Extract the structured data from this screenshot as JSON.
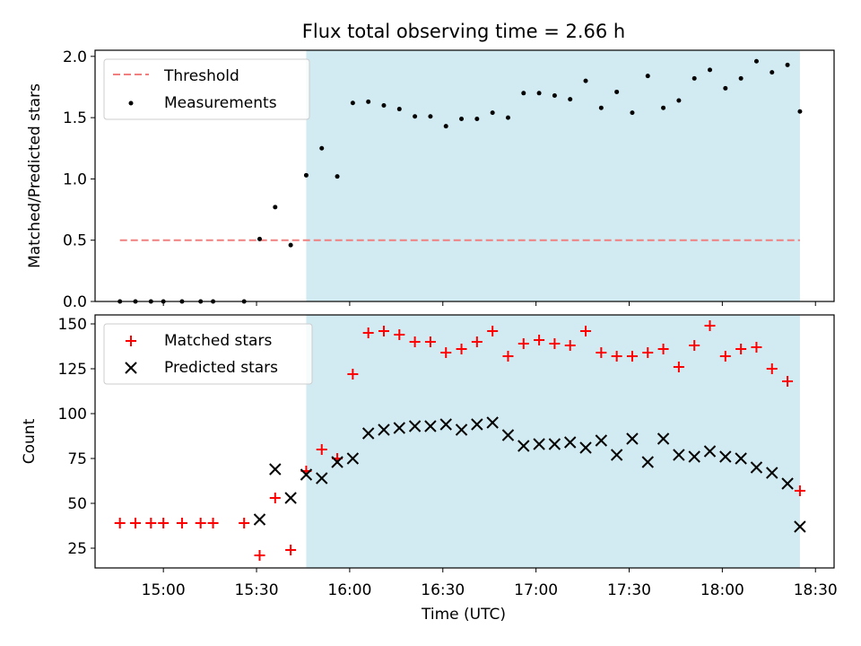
{
  "title": "Flux total observing time = 2.66 h",
  "top_panel": {
    "ylabel": "Matched/Predicted stars",
    "legend": {
      "threshold": "Threshold",
      "measurements": "Measurements"
    },
    "yticks": [
      "0.0",
      "0.5",
      "1.0",
      "1.5",
      "2.0"
    ]
  },
  "bottom_panel": {
    "ylabel": "Count",
    "xlabel": "Time (UTC)",
    "legend": {
      "matched": "Matched stars",
      "predicted": "Predicted stars"
    },
    "yticks": [
      "25",
      "50",
      "75",
      "100",
      "125",
      "150"
    ]
  },
  "xticks": [
    "15:00",
    "15:30",
    "16:00",
    "16:30",
    "17:00",
    "17:30",
    "18:00",
    "18:30"
  ],
  "colors": {
    "shade": "#add8e6",
    "threshold": "#f08080",
    "measurements": "#000000",
    "matched": "#ff0000",
    "predicted": "#000000"
  },
  "chart_data": [
    {
      "type": "scatter",
      "panel": "top",
      "title": "Flux total observing time = 2.66 h",
      "xlabel": "",
      "ylabel": "Matched/Predicted stars",
      "xlim": [
        "14:38",
        "18:36"
      ],
      "ylim": [
        0,
        2.05
      ],
      "grid": false,
      "legend_position": "top-left",
      "shaded_span": [
        "15:46",
        "18:25"
      ],
      "threshold": {
        "name": "Threshold",
        "value": 0.5,
        "x_range": [
          "14:46",
          "18:25"
        ],
        "style": "dashed"
      },
      "series": [
        {
          "name": "Measurements",
          "x": [
            "14:46",
            "14:51",
            "14:56",
            "15:00",
            "15:06",
            "15:12",
            "15:16",
            "15:26",
            "15:31",
            "15:36",
            "15:41",
            "15:46",
            "15:51",
            "15:56",
            "16:01",
            "16:06",
            "16:11",
            "16:16",
            "16:21",
            "16:26",
            "16:31",
            "16:36",
            "16:41",
            "16:46",
            "16:51",
            "16:56",
            "17:01",
            "17:06",
            "17:11",
            "17:16",
            "17:21",
            "17:26",
            "17:31",
            "17:36",
            "17:41",
            "17:46",
            "17:51",
            "17:56",
            "18:01",
            "18:06",
            "18:11",
            "18:16",
            "18:21",
            "18:25"
          ],
          "y": [
            0,
            0,
            0,
            0,
            0,
            0,
            0,
            0,
            0.51,
            0.77,
            0.46,
            1.03,
            1.25,
            1.02,
            1.62,
            1.63,
            1.6,
            1.57,
            1.51,
            1.51,
            1.43,
            1.49,
            1.49,
            1.54,
            1.5,
            1.7,
            1.7,
            1.68,
            1.65,
            1.8,
            1.58,
            1.71,
            1.54,
            1.84,
            1.58,
            1.64,
            1.82,
            1.89,
            1.74,
            1.82,
            1.96,
            1.87,
            1.93,
            1.55
          ]
        }
      ]
    },
    {
      "type": "scatter",
      "panel": "bottom",
      "xlabel": "Time (UTC)",
      "ylabel": "Count",
      "xlim": [
        "14:38",
        "18:36"
      ],
      "ylim": [
        14,
        155
      ],
      "grid": false,
      "legend_position": "top-left",
      "shaded_span": [
        "15:46",
        "18:25"
      ],
      "series": [
        {
          "name": "Matched stars",
          "marker": "+",
          "x": [
            "14:46",
            "14:51",
            "14:56",
            "15:00",
            "15:06",
            "15:12",
            "15:16",
            "15:26",
            "15:31",
            "15:36",
            "15:41",
            "15:46",
            "15:51",
            "15:56",
            "16:01",
            "16:06",
            "16:11",
            "16:16",
            "16:21",
            "16:26",
            "16:31",
            "16:36",
            "16:41",
            "16:46",
            "16:51",
            "16:56",
            "17:01",
            "17:06",
            "17:11",
            "17:16",
            "17:21",
            "17:26",
            "17:31",
            "17:36",
            "17:41",
            "17:46",
            "17:51",
            "17:56",
            "18:01",
            "18:06",
            "18:11",
            "18:16",
            "18:21",
            "18:25"
          ],
          "y": [
            39,
            39,
            39,
            39,
            39,
            39,
            39,
            39,
            21,
            53,
            24,
            68,
            80,
            75,
            122,
            145,
            146,
            144,
            140,
            140,
            134,
            136,
            140,
            146,
            132,
            139,
            141,
            139,
            138,
            146,
            134,
            132,
            132,
            134,
            136,
            126,
            138,
            149,
            132,
            136,
            137,
            125,
            118,
            57
          ]
        },
        {
          "name": "Predicted stars",
          "marker": "x",
          "x": [
            "15:31",
            "15:36",
            "15:41",
            "15:46",
            "15:51",
            "15:56",
            "16:01",
            "16:06",
            "16:11",
            "16:16",
            "16:21",
            "16:26",
            "16:31",
            "16:36",
            "16:41",
            "16:46",
            "16:51",
            "16:56",
            "17:01",
            "17:06",
            "17:11",
            "17:16",
            "17:21",
            "17:26",
            "17:31",
            "17:36",
            "17:41",
            "17:46",
            "17:51",
            "17:56",
            "18:01",
            "18:06",
            "18:11",
            "18:16",
            "18:21",
            "18:25"
          ],
          "y": [
            41,
            69,
            53,
            66,
            64,
            73,
            75,
            89,
            91,
            92,
            93,
            93,
            94,
            91,
            94,
            95,
            88,
            82,
            83,
            83,
            84,
            81,
            85,
            77,
            86,
            73,
            86,
            77,
            76,
            79,
            76,
            75,
            70,
            67,
            61,
            37
          ]
        }
      ]
    }
  ]
}
